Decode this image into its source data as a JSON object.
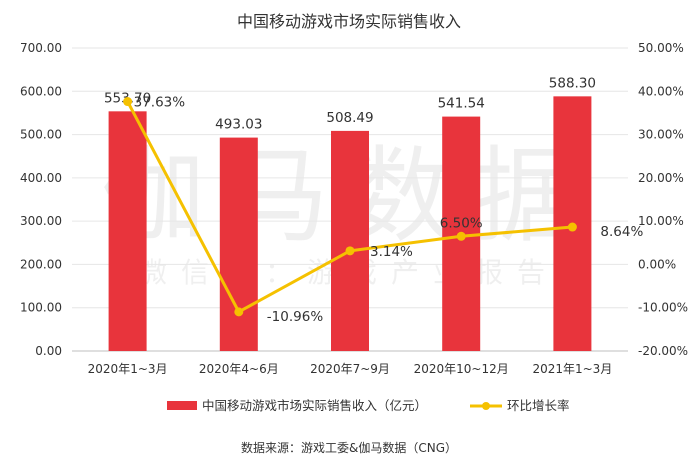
{
  "chart_data": {
    "type": "bar",
    "title": "中国移动游戏市场实际销售收入",
    "categories": [
      "2020年1~3月",
      "2020年4~6月",
      "2020年7~9月",
      "2020年10~12月",
      "2021年1~3月"
    ],
    "series": [
      {
        "name": "中国移动游戏市场实际销售收入（亿元）",
        "type": "bar",
        "axis": "left",
        "values": [
          553.7,
          493.03,
          508.49,
          541.54,
          588.3
        ],
        "labels": [
          "553.70",
          "493.03",
          "508.49",
          "541.54",
          "588.30"
        ],
        "color": "#e8343c"
      },
      {
        "name": "环比增长率",
        "type": "line",
        "axis": "right",
        "values": [
          37.63,
          -10.96,
          3.14,
          6.5,
          8.64
        ],
        "labels": [
          "37.63%",
          "-10.96%",
          "3.14%",
          "6.50%",
          "8.64%"
        ],
        "color": "#f5c100"
      }
    ],
    "y_left": {
      "min": 0,
      "max": 700,
      "ticks": [
        "0.00",
        "100.00",
        "200.00",
        "300.00",
        "400.00",
        "500.00",
        "600.00",
        "700.00"
      ]
    },
    "y_right": {
      "min": -20,
      "max": 50,
      "ticks": [
        "-20.00%",
        "-10.00%",
        "0.00%",
        "10.00%",
        "20.00%",
        "30.00%",
        "40.00%",
        "50.00%"
      ]
    },
    "grid": true,
    "legend": "bottom"
  },
  "watermark": {
    "main": "伽马数据",
    "sub": "微信号：游戏产业报告"
  },
  "source": "数据来源：游戏工委&伽马数据（CNG）"
}
